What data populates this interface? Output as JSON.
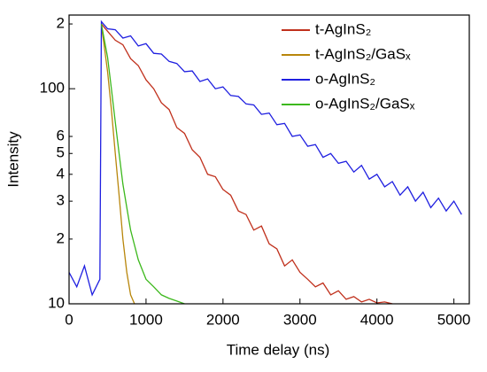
{
  "chart_data": {
    "type": "line",
    "x_label": "Time delay (ns)",
    "y_label": "Intensity",
    "log_y": true,
    "xlim": [
      0,
      5200
    ],
    "xticks": [
      0,
      1000,
      2000,
      3000,
      4000,
      5000
    ],
    "ylim": [
      10,
      220
    ],
    "yticks": [
      10,
      {
        "value": 20,
        "label": "2"
      },
      {
        "value": 30,
        "label": "3"
      },
      {
        "value": 40,
        "label": "4"
      },
      {
        "value": 50,
        "label": "5"
      },
      {
        "value": 60,
        "label": "6"
      },
      100,
      {
        "value": 200,
        "label": "2"
      }
    ],
    "legend": "upper right",
    "series": [
      {
        "name": "t-AgInS₂",
        "color": "#c0301c",
        "x": [
          420,
          500,
          600,
          700,
          800,
          900,
          1000,
          1100,
          1200,
          1300,
          1400,
          1500,
          1600,
          1700,
          1800,
          1900,
          2000,
          2100,
          2200,
          2300,
          2400,
          2500,
          2600,
          2700,
          2800,
          2900,
          3000,
          3100,
          3200,
          3300,
          3400,
          3500,
          3600,
          3700,
          3800,
          3900,
          4000,
          4100,
          4200
        ],
        "values": [
          200,
          185,
          168,
          160,
          138,
          128,
          110,
          100,
          86,
          80,
          66,
          62,
          52,
          48,
          40,
          39,
          34,
          32,
          27,
          26,
          22,
          23,
          19,
          18,
          15,
          16,
          14,
          13,
          12,
          12.5,
          11,
          11.5,
          10.5,
          10.8,
          10.2,
          10.5,
          10.1,
          10.2,
          10
        ]
      },
      {
        "name": "t-AgInS₂/GaSₓ",
        "color": "#b8860b",
        "x": [
          420,
          450,
          500,
          550,
          600,
          650,
          700,
          750,
          800,
          850
        ],
        "values": [
          195,
          165,
          120,
          80,
          50,
          32,
          20,
          14,
          11,
          10
        ]
      },
      {
        "name": "o-AgInS₂",
        "color": "#1f1fe0",
        "x": [
          0,
          100,
          200,
          300,
          400,
          420,
          500,
          600,
          700,
          800,
          900,
          1000,
          1100,
          1200,
          1300,
          1400,
          1500,
          1600,
          1700,
          1800,
          1900,
          2000,
          2100,
          2200,
          2300,
          2400,
          2500,
          2600,
          2700,
          2800,
          2900,
          3000,
          3100,
          3200,
          3300,
          3400,
          3500,
          3600,
          3700,
          3800,
          3900,
          4000,
          4100,
          4200,
          4300,
          4400,
          4500,
          4600,
          4700,
          4800,
          4900,
          5000,
          5100
        ],
        "values": [
          14,
          12,
          15,
          11,
          13,
          205,
          190,
          188,
          172,
          176,
          158,
          162,
          146,
          145,
          134,
          131,
          120,
          121,
          108,
          111,
          100,
          102,
          93,
          92,
          85,
          84,
          76,
          77,
          68,
          69,
          60,
          61,
          54,
          55,
          48,
          50,
          45,
          46,
          41,
          44,
          38,
          40,
          35,
          37,
          32,
          35,
          30,
          33,
          28,
          31,
          27,
          30,
          26
        ]
      },
      {
        "name": "o-AgInS₂/GaSₓ",
        "color": "#3cb81c",
        "x": [
          420,
          450,
          500,
          550,
          600,
          650,
          700,
          750,
          800,
          900,
          1000,
          1100,
          1200,
          1300,
          1400,
          1500
        ],
        "values": [
          200,
          175,
          140,
          100,
          70,
          50,
          36,
          28,
          22,
          16,
          13,
          12,
          11,
          10.6,
          10.3,
          10
        ]
      }
    ]
  }
}
